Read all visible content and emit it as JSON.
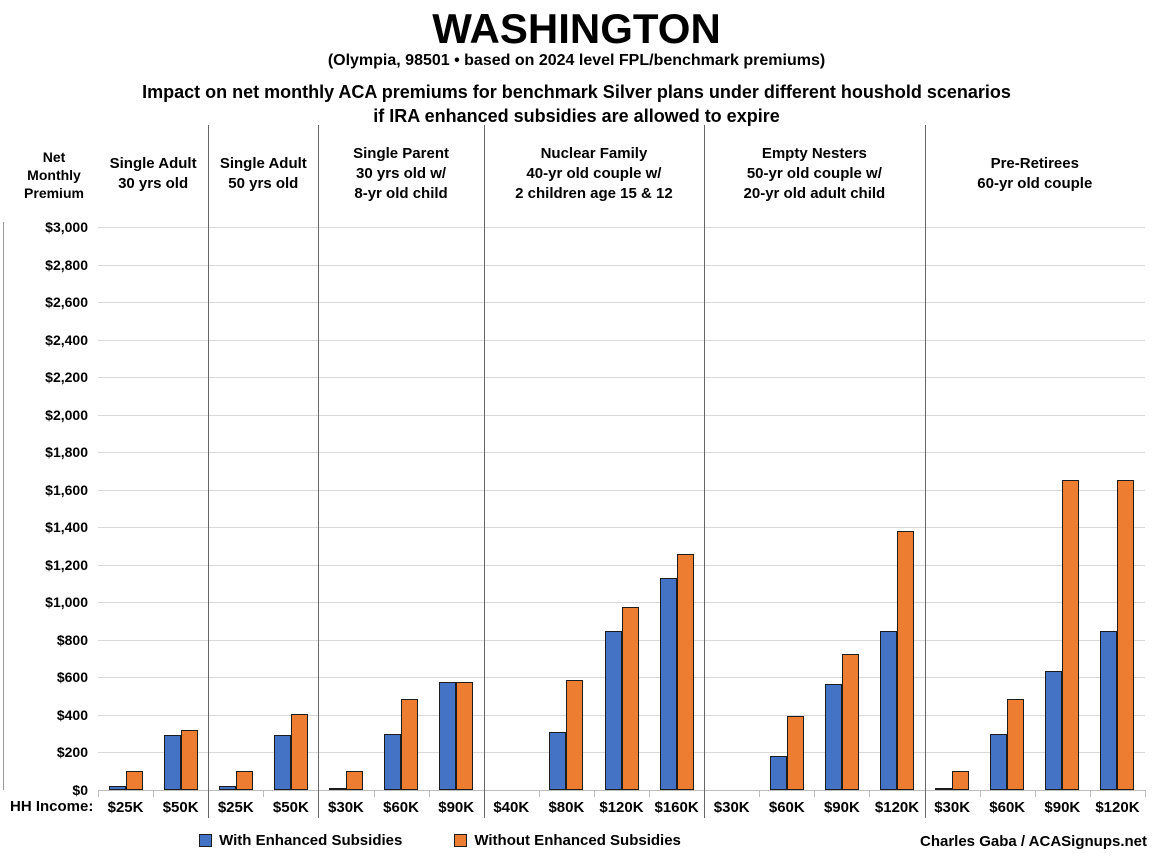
{
  "header": {
    "title": "WASHINGTON",
    "subtitle": "(Olympia, 98501 • based on 2024 level FPL/benchmark premiums)",
    "description_line1": "Impact on net monthly ACA premiums for benchmark Silver plans under different houshold scenarios",
    "description_line2": "if IRA enhanced subsidies are allowed to expire"
  },
  "axis": {
    "y_title_lines": [
      "Net",
      "Monthly",
      "Premium"
    ],
    "x_title": "HH Income:",
    "y_tick_prefix": "$"
  },
  "legend": {
    "with_label": "With Enhanced Subsidies",
    "without_label": "Without Enhanced Subsidies"
  },
  "credit": "Charles Gaba / ACASignups.net",
  "colors": {
    "with_enhanced": "#4472C4",
    "without_enhanced": "#ED7D31",
    "bar_border": "#1c1c1c",
    "gridline": "#d9d9d9",
    "separator": "#666666"
  },
  "chart_data": {
    "type": "bar",
    "title": "Impact on net monthly ACA premiums for benchmark Silver plans under different houshold scenarios if IRA enhanced subsidies are allowed to expire",
    "ylabel": "Net Monthly Premium",
    "xlabel": "HH Income",
    "ylim": [
      0,
      3000
    ],
    "ytick_step": 200,
    "grid": true,
    "legend_position": "bottom",
    "series_names": [
      "With Enhanced Subsidies",
      "Without Enhanced Subsidies"
    ],
    "groups": [
      {
        "label_lines": [
          "Single Adult",
          "30 yrs old"
        ],
        "incomes": [
          "$25K",
          "$50K"
        ],
        "with_enhanced": [
          20,
          295
        ],
        "without_enhanced": [
          100,
          318
        ]
      },
      {
        "label_lines": [
          "Single Adult",
          "50 yrs old"
        ],
        "incomes": [
          "$25K",
          "$50K"
        ],
        "with_enhanced": [
          20,
          295
        ],
        "without_enhanced": [
          100,
          405
        ]
      },
      {
        "label_lines": [
          "Single Parent",
          "30 yrs old w/",
          "8-yr old child"
        ],
        "incomes": [
          "$30K",
          "$60K",
          "$90K"
        ],
        "with_enhanced": [
          8,
          300,
          575
        ],
        "without_enhanced": [
          100,
          485,
          575
        ]
      },
      {
        "label_lines": [
          "Nuclear Family",
          "40-yr old couple w/",
          "2 children age 15 & 12"
        ],
        "incomes": [
          "$40K",
          "$80K",
          "$120K",
          "$160K"
        ],
        "with_enhanced": [
          0,
          310,
          845,
          1130
        ],
        "without_enhanced": [
          0,
          585,
          975,
          1260
        ]
      },
      {
        "label_lines": [
          "Empty Nesters",
          "50-yr old couple w/",
          "20-yr old adult child"
        ],
        "incomes": [
          "$30K",
          "$60K",
          "$90K",
          "$120K"
        ],
        "with_enhanced": [
          0,
          180,
          565,
          845
        ],
        "without_enhanced": [
          0,
          395,
          725,
          1380
        ]
      },
      {
        "label_lines": [
          "Pre-Retirees",
          "60-yr old couple"
        ],
        "incomes": [
          "$30K",
          "$60K",
          "$90K",
          "$120K"
        ],
        "with_enhanced": [
          8,
          300,
          635,
          845
        ],
        "without_enhanced": [
          100,
          485,
          1650,
          1650
        ]
      }
    ]
  }
}
